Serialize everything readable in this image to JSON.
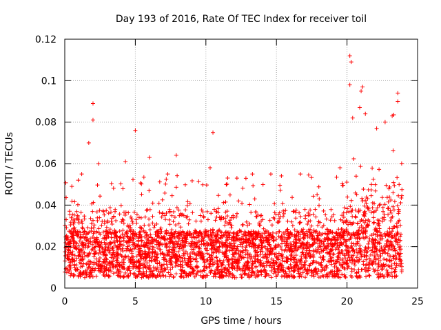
{
  "chart_data": {
    "type": "scatter",
    "title": "Day 193 of 2016, Rate Of TEC Index for receiver toil",
    "xlabel": "GPS time / hours",
    "ylabel": "ROTI / TECUs",
    "xlim": [
      0,
      25
    ],
    "ylim": [
      0,
      0.12
    ],
    "xticks": [
      0,
      5,
      10,
      15,
      20,
      25
    ],
    "xtick_labels": [
      "0",
      "5",
      "10",
      "15",
      "20",
      "25"
    ],
    "yticks": [
      0,
      0.02,
      0.04,
      0.06,
      0.08,
      0.1,
      0.12
    ],
    "ytick_labels": [
      "0",
      "0.02",
      "0.04",
      "0.06",
      "0.08",
      "0.1",
      "0.12"
    ],
    "grid": true,
    "marker": "+",
    "marker_color": "#ff0000",
    "x_range_observed": [
      0,
      23.9
    ],
    "typical_range": [
      0.005,
      0.035
    ],
    "notable_points": [
      {
        "x": 0.1,
        "y": 0.033
      },
      {
        "x": 0.5,
        "y": 0.049
      },
      {
        "x": 1.2,
        "y": 0.055
      },
      {
        "x": 1.7,
        "y": 0.07
      },
      {
        "x": 2.0,
        "y": 0.089
      },
      {
        "x": 2.0,
        "y": 0.081
      },
      {
        "x": 2.4,
        "y": 0.06
      },
      {
        "x": 4.3,
        "y": 0.061
      },
      {
        "x": 5.0,
        "y": 0.076
      },
      {
        "x": 6.0,
        "y": 0.063
      },
      {
        "x": 7.3,
        "y": 0.055
      },
      {
        "x": 7.9,
        "y": 0.064
      },
      {
        "x": 10.3,
        "y": 0.058
      },
      {
        "x": 10.5,
        "y": 0.075
      },
      {
        "x": 12.2,
        "y": 0.053
      },
      {
        "x": 13.3,
        "y": 0.055
      },
      {
        "x": 14.6,
        "y": 0.055
      },
      {
        "x": 16.7,
        "y": 0.055
      },
      {
        "x": 19.5,
        "y": 0.058
      },
      {
        "x": 20.2,
        "y": 0.112
      },
      {
        "x": 20.3,
        "y": 0.109
      },
      {
        "x": 20.2,
        "y": 0.098
      },
      {
        "x": 20.4,
        "y": 0.082
      },
      {
        "x": 21.1,
        "y": 0.097
      },
      {
        "x": 21.0,
        "y": 0.095
      },
      {
        "x": 20.9,
        "y": 0.087
      },
      {
        "x": 21.3,
        "y": 0.084
      },
      {
        "x": 22.1,
        "y": 0.077
      },
      {
        "x": 22.7,
        "y": 0.08
      },
      {
        "x": 23.2,
        "y": 0.083
      },
      {
        "x": 23.6,
        "y": 0.094
      },
      {
        "x": 23.6,
        "y": 0.09
      }
    ]
  }
}
